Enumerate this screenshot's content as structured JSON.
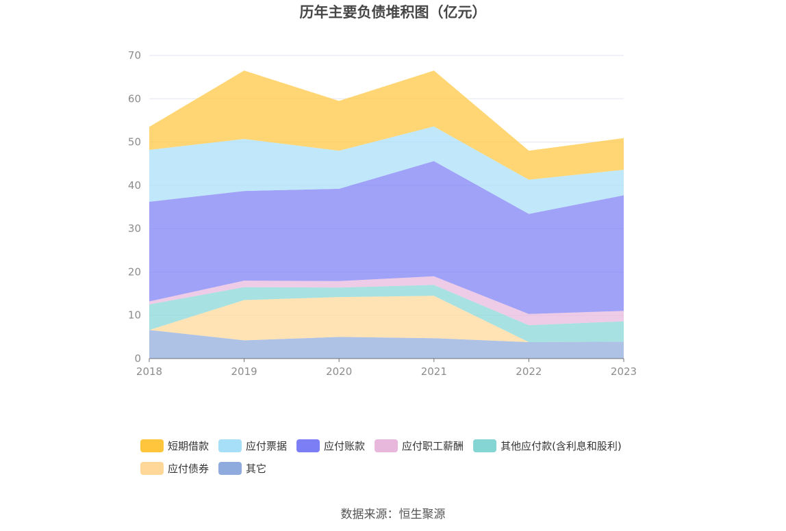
{
  "title": "历年主要负债堆积图（亿元）",
  "source": "数据来源：恒生聚源",
  "chart_data": {
    "type": "area",
    "stacked": true,
    "title": "历年主要负债堆积图（亿元）",
    "xlabel": "",
    "ylabel": "",
    "ylim": [
      0,
      70
    ],
    "yticks": [
      "0",
      "10",
      "20",
      "30",
      "40",
      "50",
      "60",
      "70"
    ],
    "categories": [
      "2018",
      "2019",
      "2020",
      "2021",
      "2022",
      "2023"
    ],
    "grid": true,
    "legend_position": "bottom",
    "series": [
      {
        "name": "其它",
        "color": "#8faadc",
        "values": [
          6.6,
          4.2,
          5.0,
          4.7,
          3.8,
          3.9
        ]
      },
      {
        "name": "应付债券",
        "color": "#ffd899",
        "values": [
          0.0,
          9.3,
          9.2,
          9.8,
          0.0,
          0.0
        ]
      },
      {
        "name": "其他应付款(含利息和股利)",
        "color": "#86d5d5",
        "values": [
          5.9,
          3.0,
          2.2,
          2.5,
          3.9,
          4.7
        ]
      },
      {
        "name": "应付职工薪酬",
        "color": "#e8b7dc",
        "values": [
          0.7,
          1.5,
          1.5,
          2.0,
          2.6,
          2.4
        ]
      },
      {
        "name": "应付账款",
        "color": "#7b7ef5",
        "values": [
          23.0,
          20.7,
          21.3,
          26.6,
          23.1,
          26.7
        ]
      },
      {
        "name": "应付票据",
        "color": "#a8dff8",
        "values": [
          12.0,
          12.0,
          8.8,
          8.0,
          7.9,
          5.9
        ]
      },
      {
        "name": "短期借款",
        "color": "#ffc63d",
        "values": [
          5.3,
          15.8,
          11.5,
          12.9,
          6.7,
          7.3
        ]
      }
    ],
    "legend_order": [
      "短期借款",
      "应付票据",
      "应付账款",
      "应付职工薪酬",
      "其他应付款(含利息和股利)",
      "应付债券",
      "其它"
    ]
  }
}
